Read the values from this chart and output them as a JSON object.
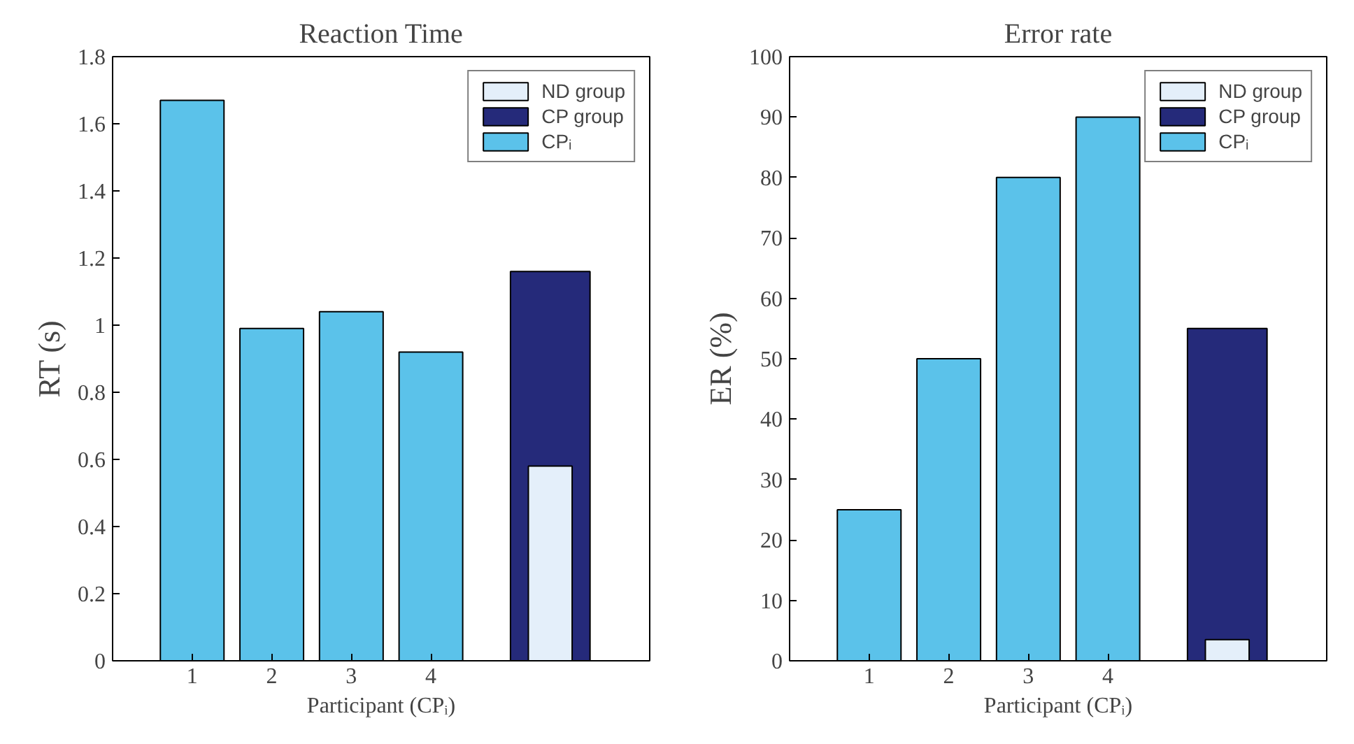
{
  "chart_data": [
    {
      "type": "bar",
      "title": "Reaction Time",
      "xlabel": "Participant (CPᵢ)",
      "ylabel": "RT (s)",
      "x": [
        1,
        2,
        3,
        4,
        5.5
      ],
      "xlim": [
        0,
        6.75
      ],
      "xticks": [
        1,
        2,
        3,
        4
      ],
      "ylim": [
        0,
        1.8
      ],
      "yticks": [
        0,
        0.2,
        0.4,
        0.6,
        0.8,
        1,
        1.2,
        1.4,
        1.6,
        1.8
      ],
      "grid": false,
      "legend": "top right",
      "series": [
        {
          "name": "ND group",
          "color": "#e4effa",
          "values": [
            null,
            null,
            null,
            null,
            0.58
          ]
        },
        {
          "name": "CP group",
          "color": "#252a7a",
          "values": [
            null,
            null,
            null,
            null,
            1.16
          ]
        },
        {
          "name": "CPᵢ",
          "color": "#5bc2ea",
          "values": [
            1.67,
            0.99,
            1.04,
            0.92,
            null
          ]
        }
      ]
    },
    {
      "type": "bar",
      "title": "Error rate",
      "xlabel": "Participant (CPᵢ)",
      "ylabel": "ER (%)",
      "x": [
        1,
        2,
        3,
        4,
        5.5
      ],
      "xlim": [
        0,
        6.75
      ],
      "xticks": [
        1,
        2,
        3,
        4
      ],
      "ylim": [
        0,
        100
      ],
      "yticks": [
        0,
        10,
        20,
        30,
        40,
        50,
        60,
        70,
        80,
        90,
        100
      ],
      "grid": false,
      "legend": "top right",
      "series": [
        {
          "name": "ND group",
          "color": "#e4effa",
          "values": [
            null,
            null,
            null,
            null,
            3.5
          ]
        },
        {
          "name": "CP group",
          "color": "#252a7a",
          "values": [
            null,
            null,
            null,
            null,
            55
          ]
        },
        {
          "name": "CPᵢ",
          "color": "#5bc2ea",
          "values": [
            25,
            50,
            80,
            90,
            null
          ]
        }
      ]
    }
  ]
}
